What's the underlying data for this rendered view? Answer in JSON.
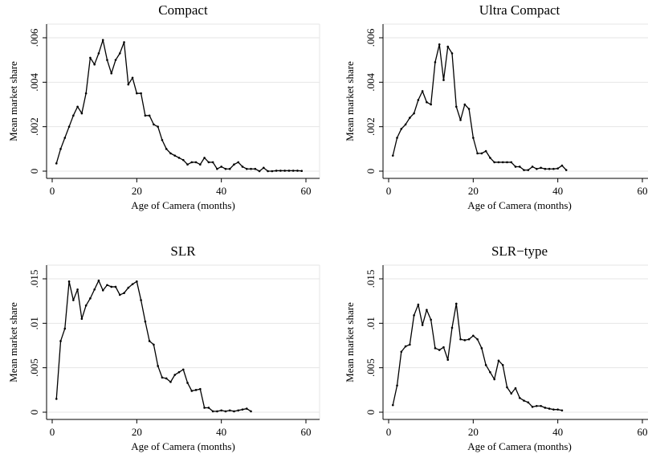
{
  "chart_data": [
    {
      "type": "line",
      "title": "Compact",
      "xlabel": "Age of Camera (months)",
      "ylabel": "Mean market share",
      "color": "#000000",
      "grid": true,
      "xlim": [
        0,
        60
      ],
      "xticks": [
        0,
        20,
        40,
        60
      ],
      "ylim": [
        0,
        0.006
      ],
      "yticks": [
        0,
        {
          "value": 0.002,
          "label": ".002"
        },
        {
          "value": 0.004,
          "label": ".004"
        },
        {
          "value": 0.006,
          "label": ".006"
        }
      ],
      "x": [
        1,
        2,
        3,
        4,
        5,
        6,
        7,
        8,
        9,
        10,
        11,
        12,
        13,
        14,
        15,
        16,
        17,
        18,
        19,
        20,
        21,
        22,
        23,
        24,
        25,
        26,
        27,
        28,
        29,
        30,
        31,
        32,
        33,
        34,
        35,
        36,
        37,
        38,
        39,
        40,
        41,
        42,
        43,
        44,
        45,
        46,
        47,
        48,
        49,
        50,
        51,
        52,
        53,
        54,
        55,
        56,
        57,
        58,
        59
      ],
      "values": [
        0.00035,
        0.001,
        0.0015,
        0.002,
        0.0025,
        0.0029,
        0.0026,
        0.0035,
        0.0051,
        0.0048,
        0.0053,
        0.0059,
        0.005,
        0.0044,
        0.005,
        0.0053,
        0.0058,
        0.0039,
        0.0042,
        0.0035,
        0.0035,
        0.0025,
        0.0025,
        0.0021,
        0.002,
        0.0014,
        0.001,
        0.0008,
        0.0007,
        0.0006,
        0.0005,
        0.0003,
        0.0004,
        0.0004,
        0.0003,
        0.0006,
        0.0004,
        0.0004,
        0.0001,
        0.0002,
        0.0001,
        0.0001,
        0.0003,
        0.0004,
        0.0002,
        0.0001,
        0.0001,
        0.0001,
        0,
        0.00015,
        0,
        0,
        2e-05,
        2e-05,
        2e-05,
        2e-05,
        2e-05,
        2e-05,
        1e-05
      ]
    },
    {
      "type": "line",
      "title": "Ultra Compact",
      "xlabel": "Age of Camera (months)",
      "ylabel": "Mean market share",
      "color": "#000000",
      "grid": true,
      "xlim": [
        0,
        60
      ],
      "xticks": [
        0,
        20,
        40,
        60
      ],
      "ylim": [
        0,
        0.006
      ],
      "yticks": [
        0,
        {
          "value": 0.002,
          "label": ".002"
        },
        {
          "value": 0.004,
          "label": ".004"
        },
        {
          "value": 0.006,
          "label": ".006"
        }
      ],
      "x": [
        1,
        2,
        3,
        4,
        5,
        6,
        7,
        8,
        9,
        10,
        11,
        12,
        13,
        14,
        15,
        16,
        17,
        18,
        19,
        20,
        21,
        22,
        23,
        24,
        25,
        26,
        27,
        28,
        29,
        30,
        31,
        32,
        33,
        34,
        35,
        36,
        37,
        38,
        39,
        40,
        41,
        42
      ],
      "values": [
        0.0007,
        0.0015,
        0.0019,
        0.0021,
        0.0024,
        0.0026,
        0.0032,
        0.0036,
        0.0031,
        0.003,
        0.0049,
        0.0057,
        0.0041,
        0.0056,
        0.0053,
        0.0029,
        0.0023,
        0.003,
        0.0028,
        0.0015,
        0.0008,
        0.0008,
        0.0009,
        0.0006,
        0.0004,
        0.0004,
        0.0004,
        0.0004,
        0.0004,
        0.0002,
        0.0002,
        5e-05,
        5e-05,
        0.0002,
        0.0001,
        0.00015,
        0.0001,
        0.0001,
        0.0001,
        0.00012,
        0.00025,
        5e-05
      ]
    },
    {
      "type": "line",
      "title": "SLR",
      "xlabel": "Age of Camera (months)",
      "ylabel": "Mean market share",
      "color": "#000000",
      "grid": true,
      "xlim": [
        0,
        60
      ],
      "xticks": [
        0,
        20,
        40,
        60
      ],
      "ylim": [
        0,
        0.015
      ],
      "yticks": [
        0,
        {
          "value": 0.005,
          "label": ".005"
        },
        {
          "value": 0.01,
          "label": ".01"
        },
        {
          "value": 0.015,
          "label": ".015"
        }
      ],
      "x": [
        1,
        2,
        3,
        4,
        5,
        6,
        7,
        8,
        9,
        10,
        11,
        12,
        13,
        14,
        15,
        16,
        17,
        18,
        19,
        20,
        21,
        22,
        23,
        24,
        25,
        26,
        27,
        28,
        29,
        30,
        31,
        32,
        33,
        34,
        35,
        36,
        37,
        38,
        39,
        40,
        41,
        42,
        43,
        44,
        45,
        46,
        47
      ],
      "values": [
        0.0015,
        0.008,
        0.0094,
        0.0147,
        0.0126,
        0.0138,
        0.0105,
        0.012,
        0.0128,
        0.0138,
        0.0148,
        0.0137,
        0.0143,
        0.0141,
        0.0141,
        0.0132,
        0.0134,
        0.014,
        0.0144,
        0.0147,
        0.0126,
        0.0102,
        0.008,
        0.0076,
        0.0052,
        0.0039,
        0.0038,
        0.0034,
        0.0042,
        0.0045,
        0.0048,
        0.0033,
        0.0024,
        0.0025,
        0.0026,
        0.0005,
        0.0005,
        0.0001,
        0.0001,
        0.0002,
        0.0001,
        0.0002,
        0.0001,
        0.0002,
        0.0003,
        0.0004,
        0.0001
      ]
    },
    {
      "type": "line",
      "title": "SLR−type",
      "xlabel": "Age of Camera (months)",
      "ylabel": "Mean market share",
      "color": "#000000",
      "grid": true,
      "xlim": [
        0,
        60
      ],
      "xticks": [
        0,
        20,
        40,
        60
      ],
      "ylim": [
        0,
        0.015
      ],
      "yticks": [
        0,
        {
          "value": 0.005,
          "label": ".005"
        },
        {
          "value": 0.01,
          "label": ".01"
        },
        {
          "value": 0.015,
          "label": ".015"
        }
      ],
      "x": [
        1,
        2,
        3,
        4,
        5,
        6,
        7,
        8,
        9,
        10,
        11,
        12,
        13,
        14,
        15,
        16,
        17,
        18,
        19,
        20,
        21,
        22,
        23,
        24,
        25,
        26,
        27,
        28,
        29,
        30,
        31,
        32,
        33,
        34,
        35,
        36,
        37,
        38,
        39,
        40,
        41
      ],
      "values": [
        0.0008,
        0.003,
        0.0068,
        0.0074,
        0.0076,
        0.0109,
        0.0121,
        0.0098,
        0.0115,
        0.0104,
        0.0072,
        0.007,
        0.0073,
        0.0059,
        0.0095,
        0.0122,
        0.0082,
        0.0081,
        0.0082,
        0.0086,
        0.0082,
        0.0072,
        0.0053,
        0.0045,
        0.0037,
        0.0058,
        0.0053,
        0.0028,
        0.0021,
        0.0027,
        0.0016,
        0.0013,
        0.0011,
        0.0006,
        0.0007,
        0.0007,
        0.0005,
        0.0004,
        0.0003,
        0.0003,
        0.0002
      ]
    }
  ]
}
